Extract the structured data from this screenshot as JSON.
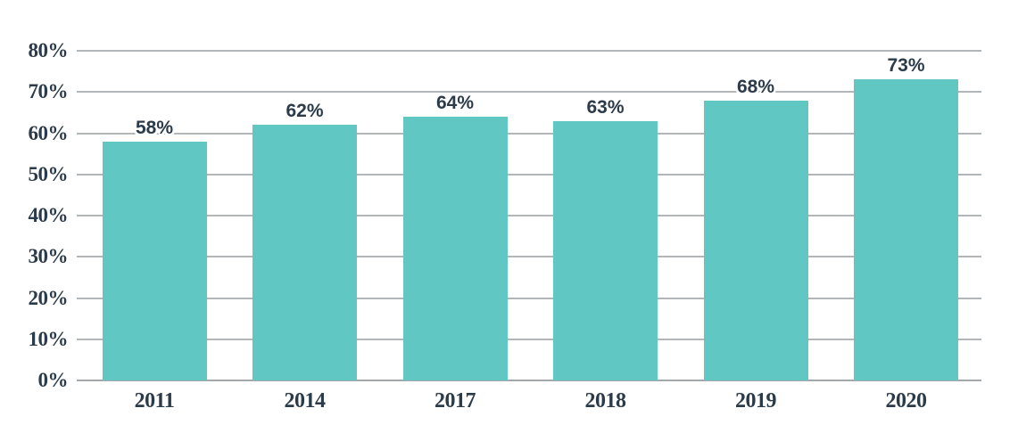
{
  "chart_data": {
    "type": "bar",
    "categories": [
      "2011",
      "2014",
      "2017",
      "2018",
      "2019",
      "2020"
    ],
    "values": [
      58,
      62,
      64,
      63,
      68,
      73
    ],
    "data_labels": [
      "58%",
      "62%",
      "64%",
      "63%",
      "68%",
      "73%"
    ],
    "ylim": [
      0,
      80
    ],
    "ytick_step": 10,
    "ytick_labels": [
      "0%",
      "10%",
      "20%",
      "30%",
      "40%",
      "50%",
      "60%",
      "70%",
      "80%"
    ],
    "grid": true,
    "legend": false,
    "colors": {
      "bar": "#60C7C3",
      "gridline": "#B3B6B8",
      "baseline": "#A5A8AB",
      "text": "#2C3B4A",
      "background": "#FFFFFF"
    }
  }
}
